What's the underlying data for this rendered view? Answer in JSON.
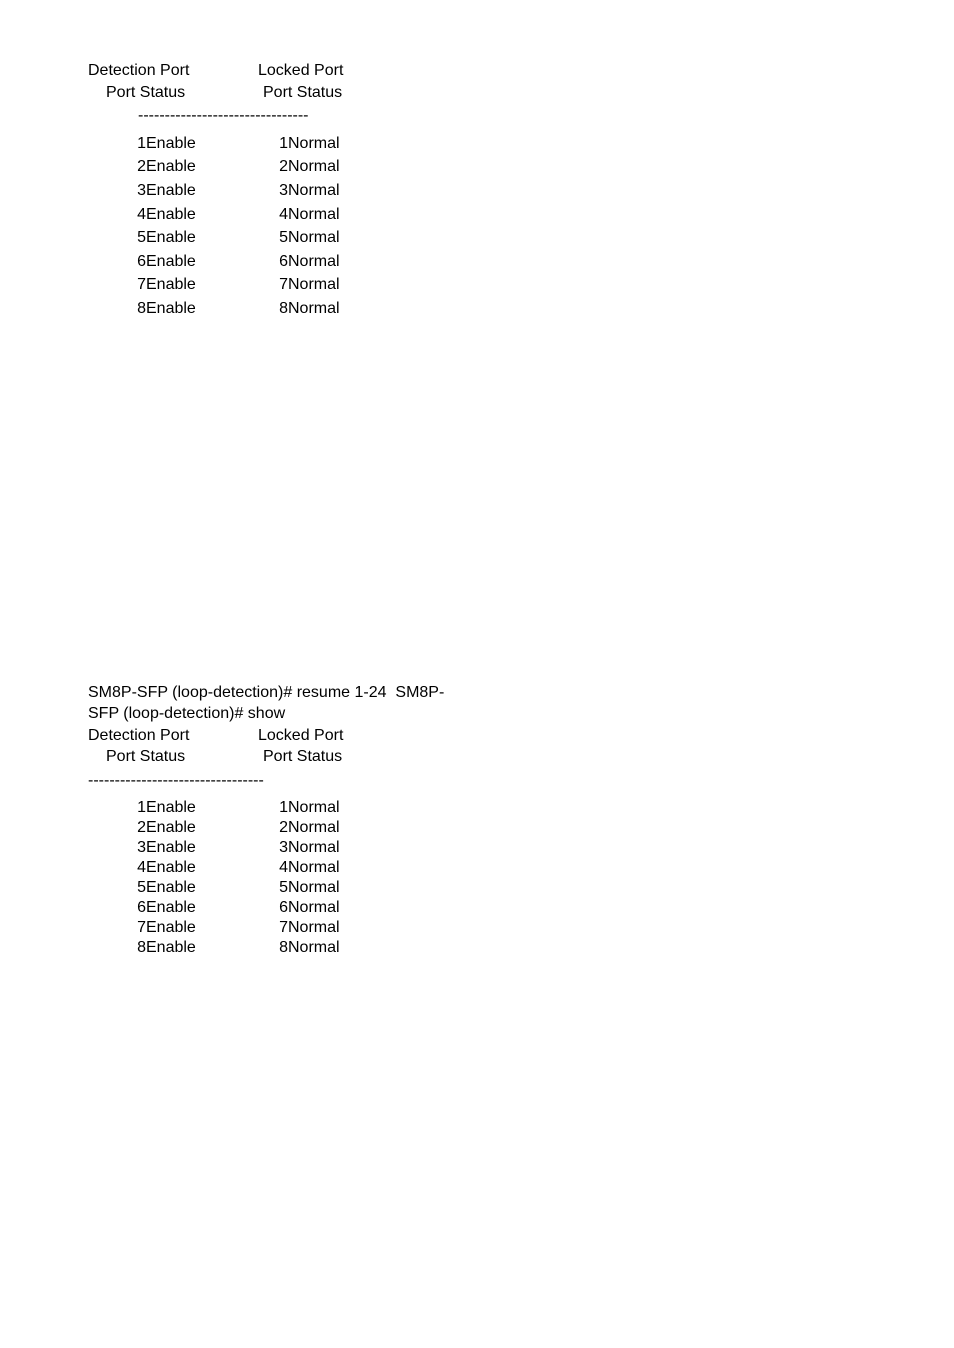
{
  "font_family": "Arial, Helvetica, sans-serif",
  "font_size_pt": 12,
  "text_color": "#000000",
  "background_color": "#ffffff",
  "blocks": [
    {
      "id": "block1",
      "cmd_lines": [],
      "headers": {
        "detection_line1": "Detection Port",
        "detection_line2": "Port Status",
        "locked_line1": "Locked Port",
        "locked_line2": "Port Status"
      },
      "separator": "--------------------------------",
      "separator_indent": "narrow",
      "rows": [
        {
          "dport": "1",
          "dstatus": "Enable",
          "lport": "1",
          "lstatus": "Normal"
        },
        {
          "dport": "2",
          "dstatus": "Enable",
          "lport": "2",
          "lstatus": "Normal"
        },
        {
          "dport": "3",
          "dstatus": "Enable",
          "lport": "3",
          "lstatus": "Normal"
        },
        {
          "dport": "4",
          "dstatus": "Enable",
          "lport": "4",
          "lstatus": "Normal"
        },
        {
          "dport": "5",
          "dstatus": "Enable",
          "lport": "5",
          "lstatus": "Normal"
        },
        {
          "dport": "6",
          "dstatus": "Enable",
          "lport": "6",
          "lstatus": "Normal"
        },
        {
          "dport": "7",
          "dstatus": "Enable",
          "lport": "7",
          "lstatus": "Normal"
        },
        {
          "dport": "8",
          "dstatus": "Enable",
          "lport": "8",
          "lstatus": "Normal"
        }
      ]
    },
    {
      "id": "block2",
      "cmd_lines": [
        "SM8P-SFP (loop-detection)# resume 1-24  SM8P-",
        "SFP (loop-detection)# show"
      ],
      "headers": {
        "detection_line1": "Detection Port",
        "detection_line2": "Port Status",
        "locked_line1": "Locked Port",
        "locked_line2": "Port Status"
      },
      "separator": "---------------------------------",
      "separator_indent": "wide",
      "rows": [
        {
          "dport": "1",
          "dstatus": "Enable",
          "lport": "1",
          "lstatus": "Normal"
        },
        {
          "dport": "2",
          "dstatus": "Enable",
          "lport": "2",
          "lstatus": "Normal"
        },
        {
          "dport": "3",
          "dstatus": "Enable",
          "lport": "3",
          "lstatus": "Normal"
        },
        {
          "dport": "4",
          "dstatus": "Enable",
          "lport": "4",
          "lstatus": "Normal"
        },
        {
          "dport": "5",
          "dstatus": "Enable",
          "lport": "5",
          "lstatus": "Normal"
        },
        {
          "dport": "6",
          "dstatus": "Enable",
          "lport": "6",
          "lstatus": "Normal"
        },
        {
          "dport": "7",
          "dstatus": "Enable",
          "lport": "7",
          "lstatus": "Normal"
        },
        {
          "dport": "8",
          "dstatus": "Enable",
          "lport": "8",
          "lstatus": "Normal"
        }
      ]
    }
  ]
}
